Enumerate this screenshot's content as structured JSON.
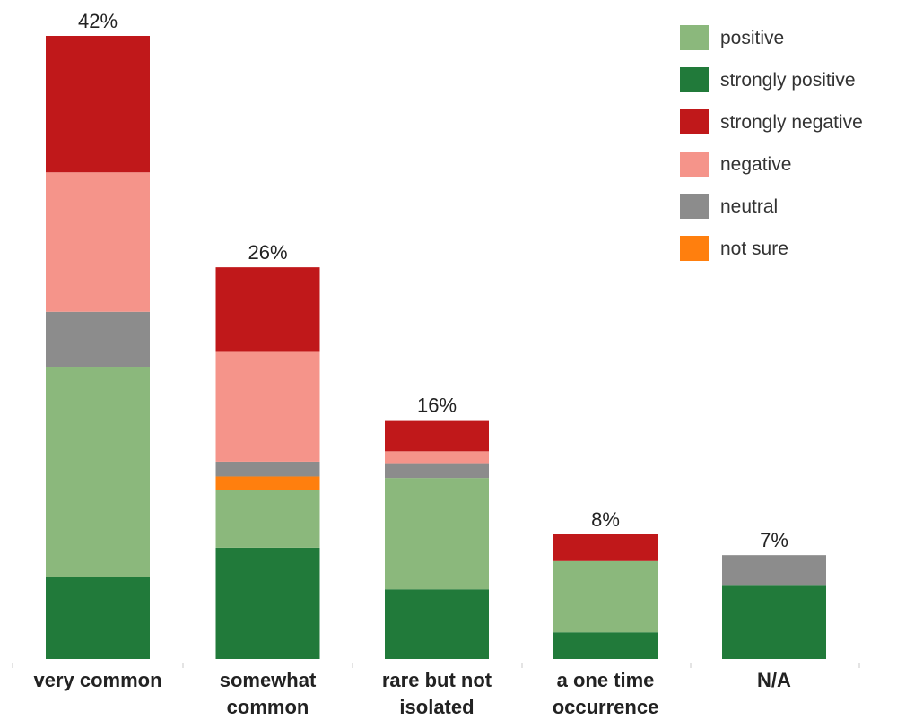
{
  "chart_data": {
    "type": "bar",
    "stacked": true,
    "categories": [
      [
        "very common"
      ],
      [
        "somewhat",
        "common"
      ],
      [
        "rare but not",
        "isolated"
      ],
      [
        "a one time",
        "occurrence"
      ],
      [
        "N/A"
      ]
    ],
    "totals": [
      "42%",
      "26%",
      "16%",
      "8%",
      "7%"
    ],
    "total_values": [
      42,
      26,
      16,
      8,
      7
    ],
    "stack_order": [
      "strongly positive",
      "positive",
      "not sure",
      "neutral",
      "negative",
      "strongly negative"
    ],
    "series": [
      {
        "name": "strongly positive",
        "color": "#217a3a",
        "values": [
          5.5,
          7.5,
          4.7,
          1.8,
          5.0
        ]
      },
      {
        "name": "positive",
        "color": "#8bb87c",
        "values": [
          14.2,
          3.9,
          7.5,
          4.8,
          0
        ]
      },
      {
        "name": "not sure",
        "color": "#ff7f0e",
        "values": [
          0,
          0.9,
          0,
          0,
          0
        ]
      },
      {
        "name": "neutral",
        "color": "#8c8c8c",
        "values": [
          3.7,
          1.0,
          1.0,
          0,
          2.0
        ]
      },
      {
        "name": "negative",
        "color": "#f5948a",
        "values": [
          9.4,
          7.4,
          0.8,
          0,
          0
        ]
      },
      {
        "name": "strongly negative",
        "color": "#c0181a",
        "values": [
          9.2,
          5.7,
          2.1,
          1.8,
          0
        ]
      }
    ],
    "legend": {
      "position": "top-right",
      "order": [
        "positive",
        "strongly positive",
        "strongly negative",
        "negative",
        "neutral",
        "not sure"
      ]
    },
    "ylim": [
      0,
      42
    ],
    "grid": false,
    "title": "",
    "xlabel": "",
    "ylabel": ""
  }
}
